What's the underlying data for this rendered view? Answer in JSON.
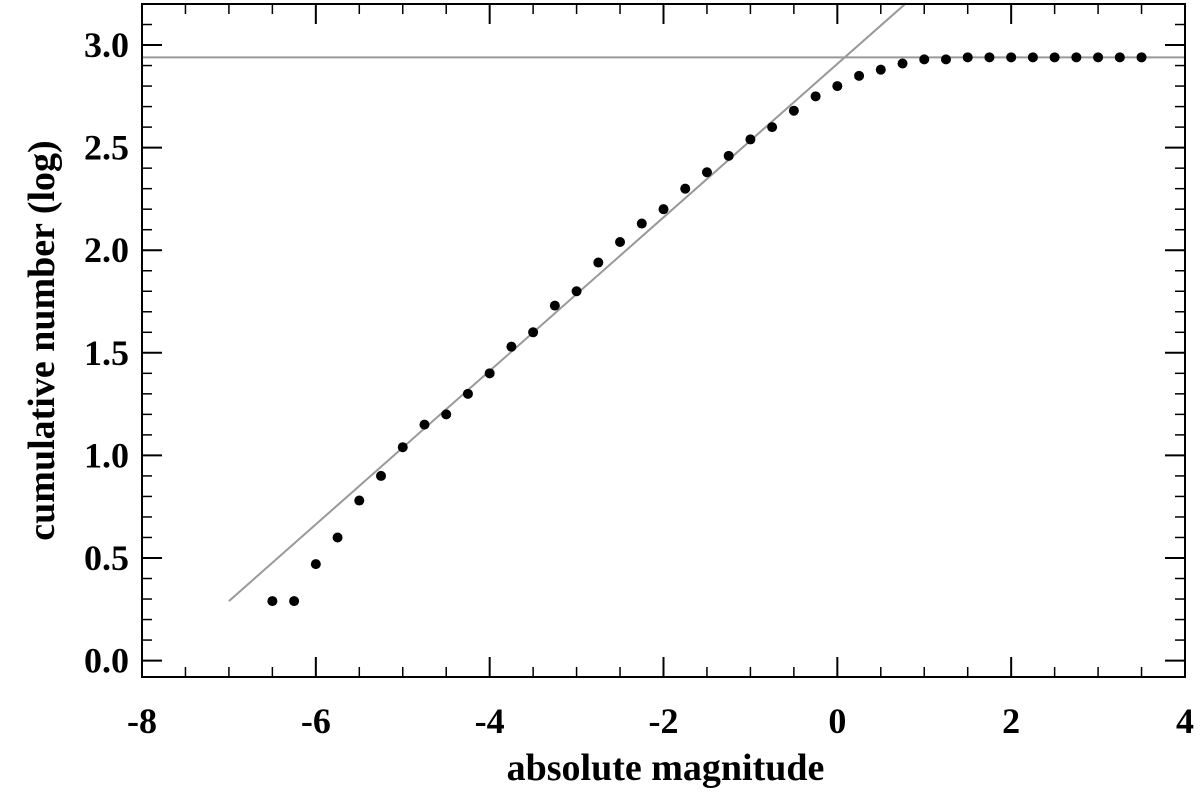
{
  "chart_data": {
    "type": "scatter",
    "title": "",
    "xlabel": "absolute magnitude",
    "ylabel": "cumulative number (log)",
    "xlim": [
      -8,
      4
    ],
    "ylim": [
      -0.08,
      3.2
    ],
    "x_ticks": [
      -8,
      -6,
      -4,
      -2,
      0,
      2,
      4
    ],
    "x_tick_labels": [
      "-8",
      "-6",
      "-4",
      "-2",
      "0",
      "2",
      "4"
    ],
    "y_ticks": [
      0.0,
      0.5,
      1.0,
      1.5,
      2.0,
      2.5,
      3.0
    ],
    "y_tick_labels": [
      "0.0",
      "0.5",
      "1.0",
      "1.5",
      "2.0",
      "2.5",
      "3.0"
    ],
    "x_minor_step": 0.5,
    "y_minor_step": 0.1,
    "grid": false,
    "series": [
      {
        "values": [
          {
            "x": -6.5,
            "y": 0.29
          },
          {
            "x": -6.25,
            "y": 0.29
          },
          {
            "x": -6.0,
            "y": 0.47
          },
          {
            "x": -5.75,
            "y": 0.6
          },
          {
            "x": -5.5,
            "y": 0.78
          },
          {
            "x": -5.25,
            "y": 0.9
          },
          {
            "x": -5.0,
            "y": 1.04
          },
          {
            "x": -4.75,
            "y": 1.15
          },
          {
            "x": -4.5,
            "y": 1.2
          },
          {
            "x": -4.25,
            "y": 1.3
          },
          {
            "x": -4.0,
            "y": 1.4
          },
          {
            "x": -3.75,
            "y": 1.53
          },
          {
            "x": -3.5,
            "y": 1.6
          },
          {
            "x": -3.25,
            "y": 1.73
          },
          {
            "x": -3.0,
            "y": 1.8
          },
          {
            "x": -2.75,
            "y": 1.94
          },
          {
            "x": -2.5,
            "y": 2.04
          },
          {
            "x": -2.25,
            "y": 2.13
          },
          {
            "x": -2.0,
            "y": 2.2
          },
          {
            "x": -1.75,
            "y": 2.3
          },
          {
            "x": -1.5,
            "y": 2.38
          },
          {
            "x": -1.25,
            "y": 2.46
          },
          {
            "x": -1.0,
            "y": 2.54
          },
          {
            "x": -0.75,
            "y": 2.6
          },
          {
            "x": -0.5,
            "y": 2.68
          },
          {
            "x": -0.25,
            "y": 2.75
          },
          {
            "x": 0.0,
            "y": 2.8
          },
          {
            "x": 0.25,
            "y": 2.85
          },
          {
            "x": 0.5,
            "y": 2.88
          },
          {
            "x": 0.75,
            "y": 2.91
          },
          {
            "x": 1.0,
            "y": 2.93
          },
          {
            "x": 1.25,
            "y": 2.93
          },
          {
            "x": 1.5,
            "y": 2.94
          },
          {
            "x": 1.75,
            "y": 2.94
          },
          {
            "x": 2.0,
            "y": 2.94
          },
          {
            "x": 2.25,
            "y": 2.94
          },
          {
            "x": 2.5,
            "y": 2.94
          },
          {
            "x": 2.75,
            "y": 2.94
          },
          {
            "x": 3.0,
            "y": 2.94
          },
          {
            "x": 3.25,
            "y": 2.94
          },
          {
            "x": 3.5,
            "y": 2.94
          }
        ],
        "color": "#000000"
      }
    ],
    "reference_lines": [
      {
        "type": "line",
        "from": {
          "x": -7.0,
          "y": 0.29
        },
        "to": {
          "x": 0.78,
          "y": 3.2
        },
        "color": "#999999"
      },
      {
        "type": "hline",
        "y": 2.94,
        "color": "#999999"
      }
    ]
  }
}
